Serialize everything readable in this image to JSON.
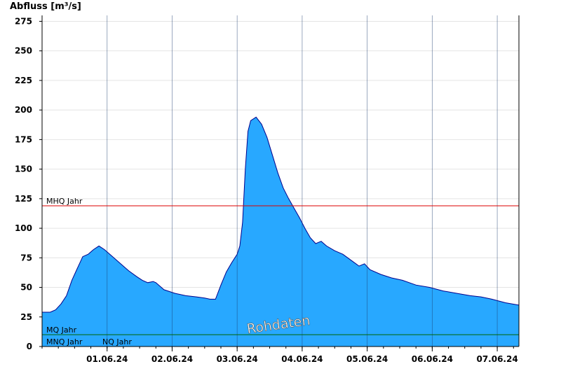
{
  "chart_data": {
    "type": "area",
    "title": "",
    "ylabel": "Abfluss [m³/s]",
    "xlabel": "",
    "ylim": [
      0,
      280
    ],
    "yticks": [
      0,
      25,
      50,
      75,
      100,
      125,
      150,
      175,
      200,
      225,
      250,
      275
    ],
    "grid": true,
    "x_start": "2024-05-31T12:00",
    "x_end": "2024-06-07T20:00",
    "xticks": [
      {
        "label": "01.06.24",
        "date": "2024-06-01T00:00"
      },
      {
        "label": "02.06.24",
        "date": "2024-06-02T00:00"
      },
      {
        "label": "03.06.24",
        "date": "2024-06-03T00:00"
      },
      {
        "label": "04.06.24",
        "date": "2024-06-04T00:00"
      },
      {
        "label": "05.06.24",
        "date": "2024-06-05T00:00"
      },
      {
        "label": "06.06.24",
        "date": "2024-06-06T00:00"
      },
      {
        "label": "07.06.24",
        "date": "2024-06-07T00:00"
      }
    ],
    "series": [
      {
        "name": "",
        "color": "#28a8ff",
        "points": [
          [
            "2024-05-31T12:00",
            29
          ],
          [
            "2024-05-31T15:00",
            29
          ],
          [
            "2024-05-31T17:00",
            31
          ],
          [
            "2024-05-31T19:00",
            36
          ],
          [
            "2024-05-31T21:00",
            43
          ],
          [
            "2024-05-31T23:00",
            56
          ],
          [
            "2024-06-01T01:00",
            66
          ],
          [
            "2024-06-01T03:00",
            76
          ],
          [
            "2024-06-01T05:00",
            78
          ],
          [
            "2024-06-01T07:00",
            82
          ],
          [
            "2024-06-01T09:00",
            85
          ],
          [
            "2024-06-01T11:00",
            82
          ],
          [
            "2024-06-01T14:00",
            76
          ],
          [
            "2024-06-01T17:00",
            70
          ],
          [
            "2024-06-01T20:00",
            64
          ],
          [
            "2024-06-01T23:00",
            59
          ],
          [
            "2024-06-02T01:00",
            56
          ],
          [
            "2024-06-02T03:00",
            54
          ],
          [
            "2024-06-02T05:00",
            55
          ],
          [
            "2024-06-02T06:00",
            54
          ],
          [
            "2024-06-02T09:00",
            48
          ],
          [
            "2024-06-02T13:00",
            45
          ],
          [
            "2024-06-02T17:00",
            43
          ],
          [
            "2024-06-02T21:00",
            42
          ],
          [
            "2024-06-03T00:00",
            41
          ],
          [
            "2024-06-03T02:00",
            40
          ],
          [
            "2024-06-03T04:00",
            40
          ],
          [
            "2024-06-03T06:00",
            52
          ],
          [
            "2024-06-03T08:00",
            63
          ],
          [
            "2024-06-03T10:00",
            71
          ],
          [
            "2024-06-03T12:00",
            78
          ],
          [
            "2024-06-03T13:00",
            85
          ],
          [
            "2024-06-03T14:00",
            105
          ],
          [
            "2024-06-03T15:00",
            150
          ],
          [
            "2024-06-03T16:00",
            182
          ],
          [
            "2024-06-03T17:00",
            191
          ],
          [
            "2024-06-03T19:00",
            194
          ],
          [
            "2024-06-03T21:00",
            188
          ],
          [
            "2024-06-03T23:00",
            177
          ],
          [
            "2024-06-04T01:00",
            162
          ],
          [
            "2024-06-04T03:00",
            147
          ],
          [
            "2024-06-04T05:00",
            134
          ],
          [
            "2024-06-04T07:00",
            125
          ],
          [
            "2024-06-04T09:00",
            117
          ],
          [
            "2024-06-04T11:00",
            109
          ],
          [
            "2024-06-04T13:00",
            100
          ],
          [
            "2024-06-04T15:00",
            92
          ],
          [
            "2024-06-04T17:00",
            87
          ],
          [
            "2024-06-04T19:00",
            89
          ],
          [
            "2024-06-04T21:00",
            85
          ],
          [
            "2024-06-05T00:00",
            81
          ],
          [
            "2024-06-05T03:00",
            78
          ],
          [
            "2024-06-05T06:00",
            73
          ],
          [
            "2024-06-05T09:00",
            68
          ],
          [
            "2024-06-05T11:00",
            70
          ],
          [
            "2024-06-05T13:00",
            65
          ],
          [
            "2024-06-05T17:00",
            61
          ],
          [
            "2024-06-05T21:00",
            58
          ],
          [
            "2024-06-06T01:00",
            56
          ],
          [
            "2024-06-06T06:00",
            52
          ],
          [
            "2024-06-06T11:00",
            50
          ],
          [
            "2024-06-06T16:00",
            47
          ],
          [
            "2024-06-06T21:00",
            45
          ],
          [
            "2024-06-07T02:00",
            43
          ],
          [
            "2024-06-07T06:00",
            42
          ],
          [
            "2024-06-07T10:00",
            40
          ],
          [
            "2024-06-07T15:00",
            37
          ],
          [
            "2024-06-07T20:00",
            35
          ]
        ]
      }
    ],
    "reference_lines": [
      {
        "label": "MHQ Jahr",
        "value": 119,
        "color": "#dd0000"
      },
      {
        "label": "MQ Jahr",
        "value": 10,
        "color": "#006600"
      },
      {
        "label": "MNQ Jahr",
        "value": 0,
        "color": "#000000"
      },
      {
        "label": "NQ Jahr",
        "value": 0,
        "color": "#000000"
      }
    ],
    "annotations": [
      "Rohdaten"
    ]
  }
}
